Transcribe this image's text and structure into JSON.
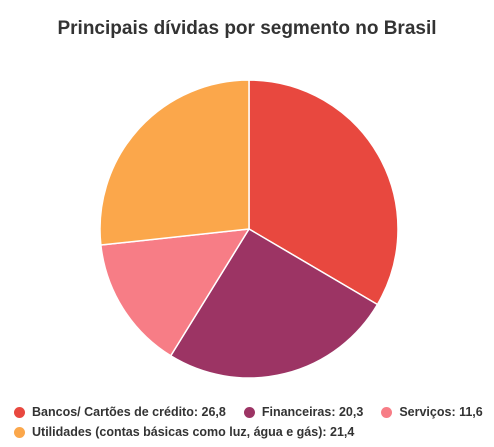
{
  "chart_data": {
    "type": "pie",
    "title": "Principais dívidas por segmento no Brasil",
    "categories": [
      "Bancos/ Cartões de crédito",
      "Financeiras",
      "Serviços",
      "Utilidades (contas básicas como luz, água e gás)"
    ],
    "values": [
      26.8,
      20.3,
      11.6,
      21.4
    ],
    "value_labels": [
      "26,8",
      "20,3",
      "11,6",
      "21,4"
    ],
    "colors": [
      "#e8483f",
      "#9c3464",
      "#f77d86",
      "#fba74b"
    ],
    "legend_placement": "bottom"
  }
}
